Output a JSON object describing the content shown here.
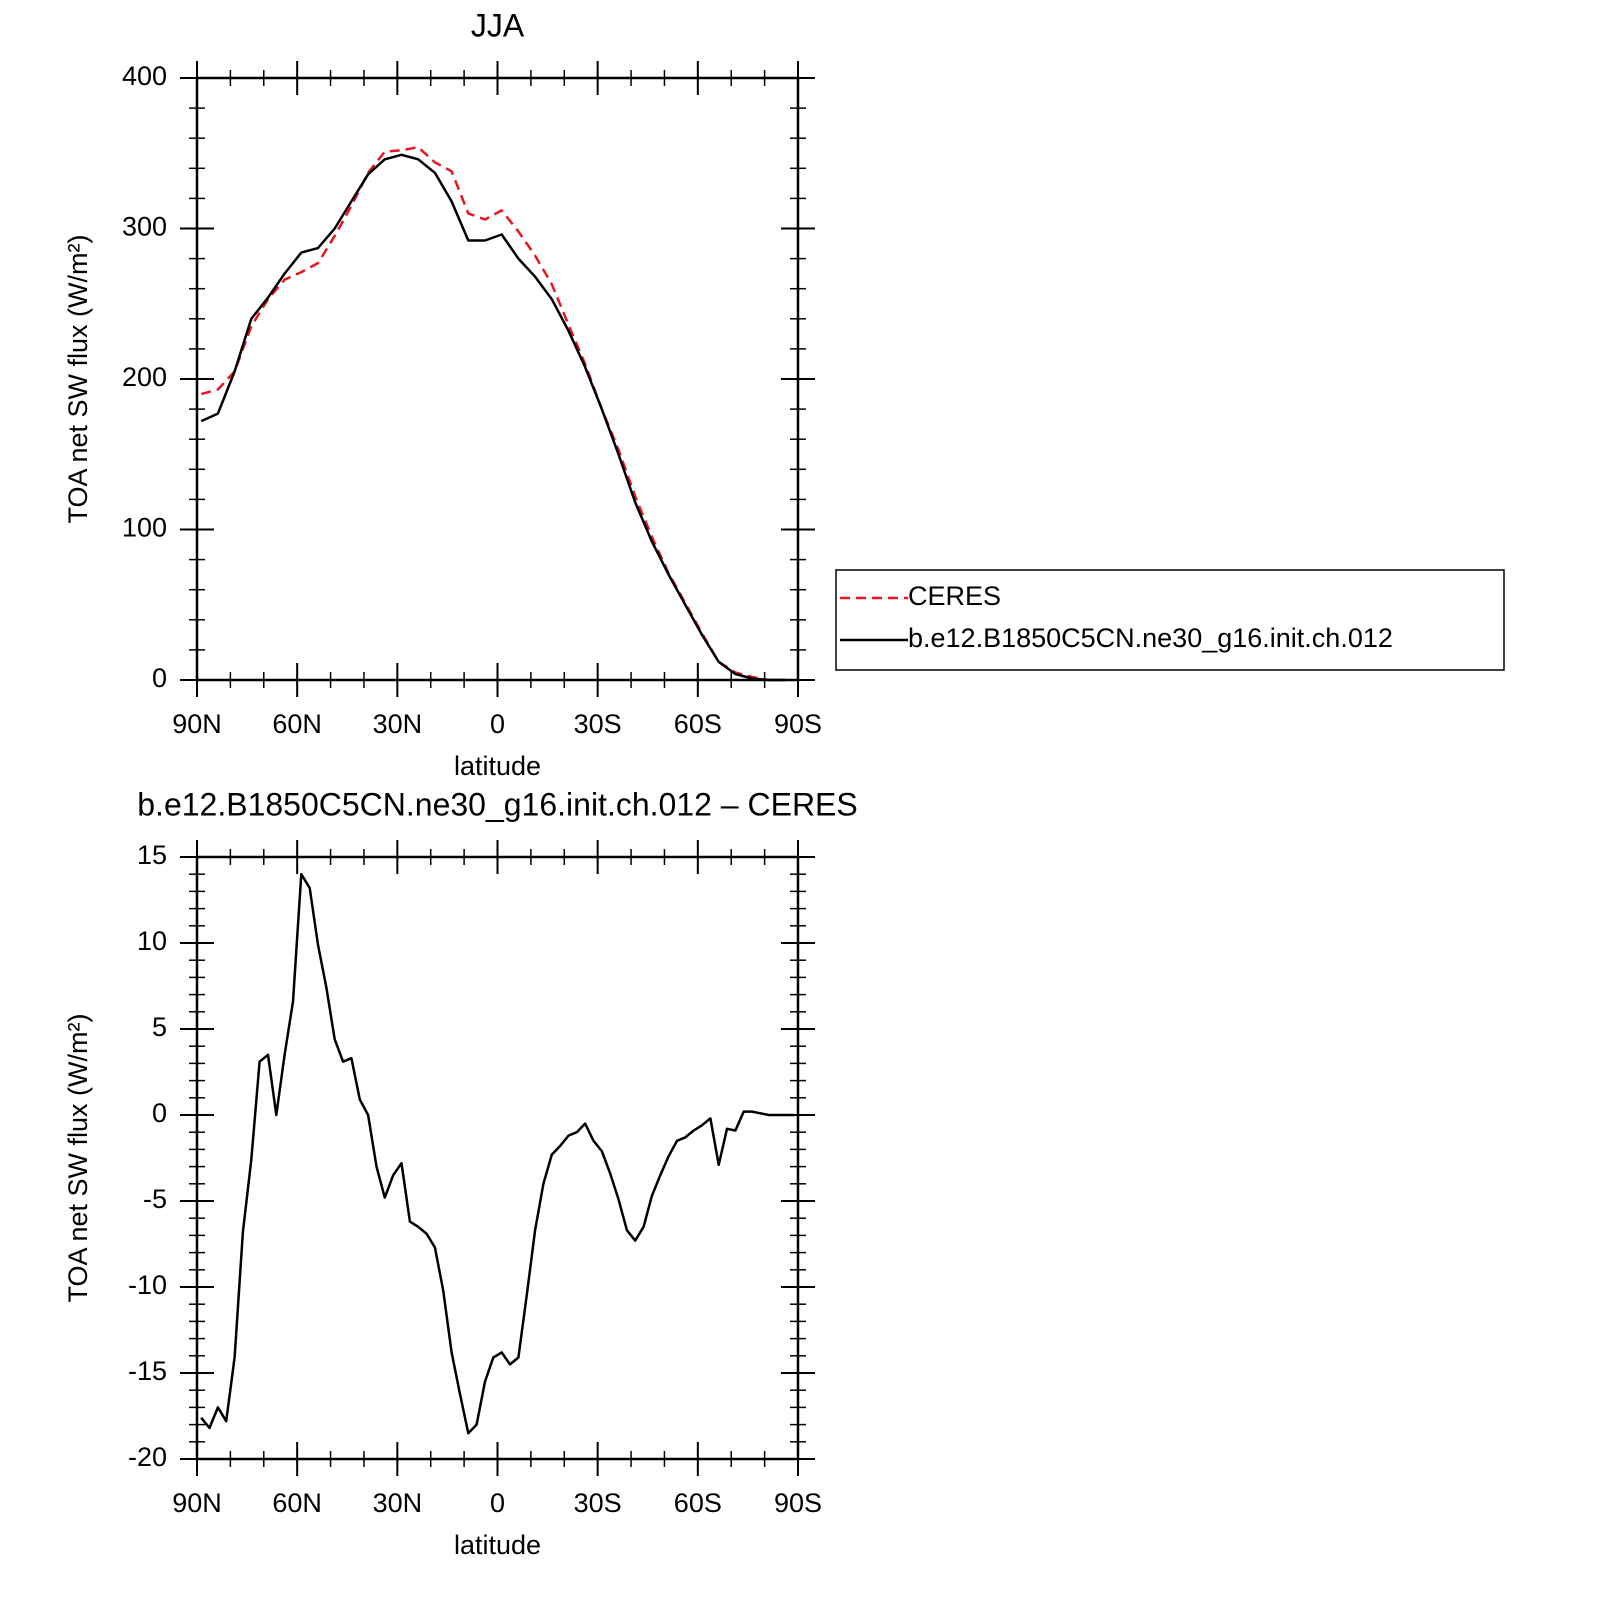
{
  "chart_data": [
    {
      "type": "line",
      "title": "JJA",
      "xlabel": "latitude",
      "ylabel": "TOA net SW flux (W/m²)",
      "x": [
        88.75,
        83.75,
        78.75,
        73.75,
        68.75,
        63.75,
        58.75,
        53.75,
        48.75,
        43.75,
        38.75,
        33.75,
        28.75,
        23.75,
        18.75,
        13.75,
        8.75,
        3.75,
        -1.25,
        -6.25,
        -11.25,
        -16.25,
        -21.25,
        -26.25,
        -31.25,
        -36.25,
        -41.25,
        -46.25,
        -51.25,
        -56.25,
        -61.25,
        -66.25,
        -71.25,
        -76.25,
        -81.25,
        -86.25
      ],
      "series": [
        {
          "name": "CERES",
          "color": "#e8161e",
          "dashed": true,
          "values": [
            190,
            193,
            205,
            235,
            253,
            266,
            271,
            277,
            295,
            315,
            337,
            351,
            352,
            354,
            344,
            338,
            310,
            306,
            312,
            298,
            282,
            263,
            236,
            210,
            180,
            153,
            122,
            95,
            71,
            51,
            31,
            12,
            5,
            2,
            0,
            0
          ]
        },
        {
          "name": "b.e12.B1850C5CN.ne30_g16.init.ch.012",
          "color": "#000000",
          "dashed": false,
          "values": [
            172,
            177,
            205,
            240,
            254,
            270,
            284,
            287,
            300,
            318,
            336,
            346,
            349,
            346,
            337,
            318,
            292,
            292,
            296,
            280,
            268,
            253,
            232,
            208,
            180,
            150,
            118,
            92,
            70,
            50,
            30,
            12,
            4,
            1,
            0,
            0
          ]
        }
      ],
      "xlim": [
        90,
        -90
      ],
      "xticks": [
        {
          "value": 90,
          "label": "90N"
        },
        {
          "value": 60,
          "label": "60N"
        },
        {
          "value": 30,
          "label": "30N"
        },
        0,
        {
          "value": -30,
          "label": "30S"
        },
        {
          "value": -60,
          "label": "60S"
        },
        {
          "value": -90,
          "label": "90S"
        }
      ],
      "xminor": [
        80,
        70,
        50,
        40,
        20,
        10,
        -10,
        -20,
        -40,
        -50,
        -70,
        -80
      ],
      "ylim": [
        0,
        400
      ],
      "yticks": [
        0,
        100,
        200,
        300,
        400
      ],
      "yminor": [
        20,
        40,
        60,
        80,
        120,
        140,
        160,
        180,
        220,
        240,
        260,
        280,
        320,
        340,
        360,
        380
      ],
      "legend": true
    },
    {
      "type": "line",
      "title": "b.e12.B1850C5CN.ne30_g16.init.ch.012 – CERES",
      "xlabel": "latitude",
      "ylabel": "TOA net SW flux (W/m²)",
      "x": [
        88.75,
        86.25,
        83.75,
        81.25,
        78.75,
        76.25,
        73.75,
        71.25,
        68.75,
        66.25,
        63.75,
        61.25,
        58.75,
        56.25,
        53.75,
        51.25,
        48.75,
        46.25,
        43.75,
        41.25,
        38.75,
        36.25,
        33.75,
        31.25,
        28.75,
        26.25,
        23.75,
        21.25,
        18.75,
        16.25,
        13.75,
        11.25,
        8.75,
        6.25,
        3.75,
        1.25,
        -1.25,
        -3.75,
        -6.25,
        -8.75,
        -11.25,
        -13.75,
        -16.25,
        -18.75,
        -21.25,
        -23.75,
        -26.25,
        -28.75,
        -31.25,
        -33.75,
        -36.25,
        -38.75,
        -41.25,
        -43.75,
        -46.25,
        -48.75,
        -51.25,
        -53.75,
        -56.25,
        -58.75,
        -61.25,
        -63.75,
        -66.25,
        -68.75,
        -71.25,
        -73.75,
        -76.25,
        -78.75,
        -81.25,
        -83.75,
        -86.25,
        -88.75
      ],
      "series": [
        {
          "color": "#000000",
          "dashed": false,
          "values": [
            -17.6,
            -18.2,
            -17.0,
            -17.8,
            -14.1,
            -6.8,
            -2.6,
            3.1,
            3.5,
            0,
            3.5,
            6.6,
            14.0,
            13.2,
            9.9,
            7.4,
            4.4,
            3.1,
            3.3,
            0.9,
            0,
            -3.0,
            -4.8,
            -3.5,
            -2.8,
            -6.2,
            -6.5,
            -6.9,
            -7.7,
            -10.2,
            -13.8,
            -16.2,
            -18.5,
            -18.0,
            -15.5,
            -14.1,
            -13.8,
            -14.5,
            -14.1,
            -10.5,
            -6.7,
            -4.0,
            -2.3,
            -1.8,
            -1.2,
            -1.0,
            -0.5,
            -1.5,
            -2.1,
            -3.4,
            -4.9,
            -6.7,
            -7.3,
            -6.5,
            -4.7,
            -3.5,
            -2.4,
            -1.5,
            -1.3,
            -0.9,
            -0.6,
            -0.2,
            -2.9,
            -0.8,
            -0.9,
            0.2,
            0.2,
            0.1,
            0,
            0,
            0,
            0
          ]
        }
      ],
      "xlim": [
        90,
        -90
      ],
      "xticks": [
        {
          "value": 90,
          "label": "90N"
        },
        {
          "value": 60,
          "label": "60N"
        },
        {
          "value": 30,
          "label": "30N"
        },
        0,
        {
          "value": -30,
          "label": "30S"
        },
        {
          "value": -60,
          "label": "60S"
        },
        {
          "value": -90,
          "label": "90S"
        }
      ],
      "xminor": [
        80,
        70,
        50,
        40,
        20,
        10,
        -10,
        -20,
        -40,
        -50,
        -70,
        -80
      ],
      "ylim": [
        -20,
        15
      ],
      "yticks": [
        -20,
        -15,
        -10,
        -5,
        0,
        5,
        10,
        15
      ],
      "yminor": [
        -19,
        -18,
        -17,
        -16,
        -14,
        -13,
        -12,
        -11,
        -9,
        -8,
        -7,
        -6,
        -4,
        -3,
        -2,
        -1,
        1,
        2,
        3,
        4,
        6,
        7,
        8,
        9,
        11,
        12,
        13,
        14
      ],
      "legend": false
    }
  ]
}
